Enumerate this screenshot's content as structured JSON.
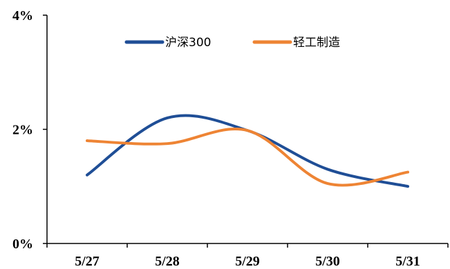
{
  "chart_data": {
    "type": "line",
    "title": "",
    "xlabel": "",
    "ylabel": "",
    "categories": [
      "5/27",
      "5/28",
      "5/29",
      "5/30",
      "5/31"
    ],
    "y_ticks": [
      "0%",
      "2%",
      "4%"
    ],
    "ylim": [
      0,
      4
    ],
    "grid": false,
    "legend_position": "top",
    "smooth": true,
    "series": [
      {
        "name": "沪深300",
        "color": "#1f4e96",
        "values": [
          1.2,
          2.2,
          1.98,
          1.3,
          1.0
        ]
      },
      {
        "name": "轻工制造",
        "color": "#ee8434",
        "values": [
          1.8,
          1.75,
          1.98,
          1.05,
          1.25
        ]
      }
    ]
  }
}
